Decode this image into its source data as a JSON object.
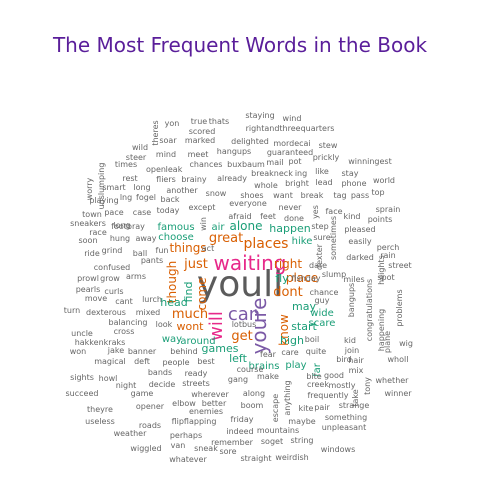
{
  "title": "The Most Frequent Words in the Book",
  "colors": {
    "title": "#5a1e9a",
    "tier1": "#5b5b5b",
    "tier2": "#7b5aa6",
    "tier3": "#e7298a",
    "tier4": "#d95f02",
    "tier5": "#1b9e77",
    "tier6": "#666666"
  },
  "words": [
    {
      "text": "youll",
      "tier": 1
    },
    {
      "text": "waiting",
      "tier": 3
    },
    {
      "text": "youre",
      "tier": 2
    },
    {
      "text": "can",
      "tier": 2
    },
    {
      "text": "will",
      "tier": 3
    },
    {
      "text": "places",
      "tier": 4
    },
    {
      "text": "great",
      "tier": 4
    },
    {
      "text": "just",
      "tier": 4
    },
    {
      "text": "dont",
      "tier": 4
    },
    {
      "text": "get",
      "tier": 4
    },
    {
      "text": "much",
      "tier": 4
    },
    {
      "text": "things",
      "tier": 4
    },
    {
      "text": "though",
      "tier": 4
    },
    {
      "text": "come",
      "tier": 4
    },
    {
      "text": "place",
      "tier": 4
    },
    {
      "text": "know",
      "tier": 4
    },
    {
      "text": "right",
      "tier": 4
    },
    {
      "text": "wont",
      "tier": 4
    },
    {
      "text": "alone",
      "tier": 5
    },
    {
      "text": "find",
      "tier": 5
    },
    {
      "text": "fly",
      "tier": 5
    },
    {
      "text": "head",
      "tier": 5
    },
    {
      "text": "start",
      "tier": 5
    },
    {
      "text": "games",
      "tier": 5
    },
    {
      "text": "happen",
      "tier": 5
    },
    {
      "text": "high",
      "tier": 5
    },
    {
      "text": "may",
      "tier": 5
    },
    {
      "text": "way",
      "tier": 5
    },
    {
      "text": "around",
      "tier": 5
    },
    {
      "text": "left",
      "tier": 5
    },
    {
      "text": "air",
      "tier": 5
    },
    {
      "text": "choose",
      "tier": 5
    },
    {
      "text": "wide",
      "tier": 5
    },
    {
      "text": "scare",
      "tier": 5
    },
    {
      "text": "famous",
      "tier": 5
    },
    {
      "text": "hike",
      "tier": 5
    },
    {
      "text": "play",
      "tier": 5
    },
    {
      "text": "far",
      "tier": 5
    },
    {
      "text": "brains",
      "tier": 5
    },
    {
      "text": "steer",
      "tier": 6
    },
    {
      "text": "mind",
      "tier": 6
    },
    {
      "text": "meet",
      "tier": 6
    },
    {
      "text": "hangups",
      "tier": 6
    },
    {
      "text": "buxbaum",
      "tier": 6
    },
    {
      "text": "mail",
      "tier": 6
    },
    {
      "text": "pot",
      "tier": 6
    },
    {
      "text": "prickly",
      "tier": 6
    },
    {
      "text": "winningest",
      "tier": 6
    },
    {
      "text": "staying",
      "tier": 6
    },
    {
      "text": "wind",
      "tier": 6
    },
    {
      "text": "true",
      "tier": 6
    },
    {
      "text": "thats",
      "tier": 6
    },
    {
      "text": "scored",
      "tier": 6
    },
    {
      "text": "rightandthreequarters",
      "tier": 6
    },
    {
      "text": "yon",
      "tier": 6
    },
    {
      "text": "soar",
      "tier": 6
    },
    {
      "text": "marked",
      "tier": 6
    },
    {
      "text": "delighted",
      "tier": 6
    },
    {
      "text": "mordecai",
      "tier": 6
    },
    {
      "text": "stew",
      "tier": 6
    },
    {
      "text": "wild",
      "tier": 6
    },
    {
      "text": "theres",
      "tier": 6
    },
    {
      "text": "guaranteed",
      "tier": 6
    },
    {
      "text": "chances",
      "tier": 6
    },
    {
      "text": "breakneck",
      "tier": 6
    },
    {
      "text": "ing",
      "tier": 6
    },
    {
      "text": "like",
      "tier": 6
    },
    {
      "text": "stay",
      "tier": 6
    },
    {
      "text": "open",
      "tier": 6
    },
    {
      "text": "leak",
      "tier": 6
    },
    {
      "text": "times",
      "tier": 6
    },
    {
      "text": "fliers",
      "tier": 6
    },
    {
      "text": "brainy",
      "tier": 6
    },
    {
      "text": "already",
      "tier": 6
    },
    {
      "text": "whole",
      "tier": 6
    },
    {
      "text": "bright",
      "tier": 6
    },
    {
      "text": "lead",
      "tier": 6
    },
    {
      "text": "phone",
      "tier": 6
    },
    {
      "text": "world",
      "tier": 6
    },
    {
      "text": "rest",
      "tier": 6
    },
    {
      "text": "another",
      "tier": 6
    },
    {
      "text": "snow",
      "tier": 6
    },
    {
      "text": "shoes",
      "tier": 6
    },
    {
      "text": "want",
      "tier": 6
    },
    {
      "text": "break",
      "tier": 6
    },
    {
      "text": "tag",
      "tier": 6
    },
    {
      "text": "pass",
      "tier": 6
    },
    {
      "text": "top",
      "tier": 6
    },
    {
      "text": "worry",
      "tier": 6
    },
    {
      "text": "unslumping",
      "tier": 6
    },
    {
      "text": "smart",
      "tier": 6
    },
    {
      "text": "long",
      "tier": 6
    },
    {
      "text": "playing",
      "tier": 6
    },
    {
      "text": "fogel",
      "tier": 6
    },
    {
      "text": "back",
      "tier": 6
    },
    {
      "text": "lng",
      "tier": 6
    },
    {
      "text": "town",
      "tier": 6
    },
    {
      "text": "pace",
      "tier": 6
    },
    {
      "text": "case",
      "tier": 6
    },
    {
      "text": "today",
      "tier": 6
    },
    {
      "text": "except",
      "tier": 6
    },
    {
      "text": "everyone",
      "tier": 6
    },
    {
      "text": "afraid",
      "tier": 6
    },
    {
      "text": "feet",
      "tier": 6
    },
    {
      "text": "never",
      "tier": 6
    },
    {
      "text": "done",
      "tier": 6
    },
    {
      "text": "step",
      "tier": 6
    },
    {
      "text": "yes",
      "tier": 6
    },
    {
      "text": "face",
      "tier": 6
    },
    {
      "text": "kind",
      "tier": 6
    },
    {
      "text": "points",
      "tier": 6
    },
    {
      "text": "sprain",
      "tier": 6
    },
    {
      "text": "sneakers",
      "tier": 6
    },
    {
      "text": "race",
      "tier": 6
    },
    {
      "text": "long",
      "tier": 6
    },
    {
      "text": "footbray",
      "tier": 6
    },
    {
      "text": "win",
      "tier": 6
    },
    {
      "text": "sometimes",
      "tier": 6
    },
    {
      "text": "sure",
      "tier": 6
    },
    {
      "text": "pleased",
      "tier": 6
    },
    {
      "text": "soon",
      "tier": 6
    },
    {
      "text": "hung",
      "tier": 6
    },
    {
      "text": "away",
      "tier": 6
    },
    {
      "text": "act",
      "tier": 6
    },
    {
      "text": "dexter",
      "tier": 6
    },
    {
      "text": "easily",
      "tier": 6
    },
    {
      "text": "perch",
      "tier": 6
    },
    {
      "text": "ride",
      "tier": 6
    },
    {
      "text": "grind",
      "tier": 6
    },
    {
      "text": "ball",
      "tier": 6
    },
    {
      "text": "fun",
      "tier": 6
    },
    {
      "text": "rain",
      "tier": 6
    },
    {
      "text": "darked",
      "tier": 6
    },
    {
      "text": "heights",
      "tier": 6
    },
    {
      "text": "street",
      "tier": 6
    },
    {
      "text": "confused",
      "tier": 6
    },
    {
      "text": "pants",
      "tier": 6
    },
    {
      "text": "dare",
      "tier": 6
    },
    {
      "text": "slump",
      "tier": 6
    },
    {
      "text": "prowl",
      "tier": 6
    },
    {
      "text": "grow",
      "tier": 6
    },
    {
      "text": "arms",
      "tier": 6
    },
    {
      "text": "fishday",
      "tier": 6
    },
    {
      "text": "chance",
      "tier": 6
    },
    {
      "text": "miles",
      "tier": 6
    },
    {
      "text": "bangups",
      "tier": 6
    },
    {
      "text": "pearls",
      "tier": 6
    },
    {
      "text": "curls",
      "tier": 6
    },
    {
      "text": "lurch",
      "tier": 6
    },
    {
      "text": "guy",
      "tier": 6
    },
    {
      "text": "congratulations",
      "tier": 6
    },
    {
      "text": "spot",
      "tier": 6
    },
    {
      "text": "move",
      "tier": 6
    },
    {
      "text": "cant",
      "tier": 6
    },
    {
      "text": "turn",
      "tier": 6
    },
    {
      "text": "dexterous",
      "tier": 6
    },
    {
      "text": "mixed",
      "tier": 6
    },
    {
      "text": "problems",
      "tier": 6
    },
    {
      "text": "balancing",
      "tier": 6
    },
    {
      "text": "look",
      "tier": 6
    },
    {
      "text": "lotbus",
      "tier": 6
    },
    {
      "text": "happening",
      "tier": 6
    },
    {
      "text": "uncle",
      "tier": 6
    },
    {
      "text": "cross",
      "tier": 6
    },
    {
      "text": "boil",
      "tier": 6
    },
    {
      "text": "kid",
      "tier": 6
    },
    {
      "text": "plane",
      "tier": 6
    },
    {
      "text": "wig",
      "tier": 6
    },
    {
      "text": "hakkenkraks",
      "tier": 6
    },
    {
      "text": "care",
      "tier": 6
    },
    {
      "text": "quite",
      "tier": 6
    },
    {
      "text": "join",
      "tier": 6
    },
    {
      "text": "won",
      "tier": 6
    },
    {
      "text": "jake",
      "tier": 6
    },
    {
      "text": "banner",
      "tier": 6
    },
    {
      "text": "behind",
      "tier": 6
    },
    {
      "text": "fear",
      "tier": 6
    },
    {
      "text": "bird",
      "tier": 6
    },
    {
      "text": "hair",
      "tier": 6
    },
    {
      "text": "wholl",
      "tier": 6
    },
    {
      "text": "magical",
      "tier": 6
    },
    {
      "text": "deft",
      "tier": 6
    },
    {
      "text": "people",
      "tier": 6
    },
    {
      "text": "best",
      "tier": 6
    },
    {
      "text": "course",
      "tier": 6
    },
    {
      "text": "mix",
      "tier": 6
    },
    {
      "text": "sights",
      "tier": 6
    },
    {
      "text": "howl",
      "tier": 6
    },
    {
      "text": "bands",
      "tier": 6
    },
    {
      "text": "ready",
      "tier": 6
    },
    {
      "text": "gang",
      "tier": 6
    },
    {
      "text": "make",
      "tier": 6
    },
    {
      "text": "bite",
      "tier": 6
    },
    {
      "text": "good",
      "tier": 6
    },
    {
      "text": "whether",
      "tier": 6
    },
    {
      "text": "night",
      "tier": 6
    },
    {
      "text": "decide",
      "tier": 6
    },
    {
      "text": "streets",
      "tier": 6
    },
    {
      "text": "creek",
      "tier": 6
    },
    {
      "text": "mostly",
      "tier": 6
    },
    {
      "text": "succeed",
      "tier": 6
    },
    {
      "text": "game",
      "tier": 6
    },
    {
      "text": "wherever",
      "tier": 6
    },
    {
      "text": "along",
      "tier": 6
    },
    {
      "text": "frequently",
      "tier": 6
    },
    {
      "text": "winner",
      "tier": 6
    },
    {
      "text": "theyre",
      "tier": 6
    },
    {
      "text": "opener",
      "tier": 6
    },
    {
      "text": "elbow",
      "tier": 6
    },
    {
      "text": "better",
      "tier": 6
    },
    {
      "text": "boom",
      "tier": 6
    },
    {
      "text": "anything",
      "tier": 6
    },
    {
      "text": "kite",
      "tier": 6
    },
    {
      "text": "pair",
      "tier": 6
    },
    {
      "text": "strange",
      "tier": 6
    },
    {
      "text": "useless",
      "tier": 6
    },
    {
      "text": "roads",
      "tier": 6
    },
    {
      "text": "enemies",
      "tier": 6
    },
    {
      "text": "flipflapping",
      "tier": 6
    },
    {
      "text": "friday",
      "tier": 6
    },
    {
      "text": "maybe",
      "tier": 6
    },
    {
      "text": "something",
      "tier": 6
    },
    {
      "text": "weather",
      "tier": 6
    },
    {
      "text": "perhaps",
      "tier": 6
    },
    {
      "text": "indeed",
      "tier": 6
    },
    {
      "text": "mountains",
      "tier": 6
    },
    {
      "text": "unpleasant",
      "tier": 6
    },
    {
      "text": "wiggled",
      "tier": 6
    },
    {
      "text": "van",
      "tier": 6
    },
    {
      "text": "sneak",
      "tier": 6
    },
    {
      "text": "remember",
      "tier": 6
    },
    {
      "text": "soget",
      "tier": 6
    },
    {
      "text": "string",
      "tier": 6
    },
    {
      "text": "windows",
      "tier": 6
    },
    {
      "text": "whatever",
      "tier": 6
    },
    {
      "text": "sore",
      "tier": 6
    },
    {
      "text": "straight",
      "tier": 6
    },
    {
      "text": "weirdish",
      "tier": 6
    },
    {
      "text": "escape",
      "tier": 6
    },
    {
      "text": "tony",
      "tier": 6
    },
    {
      "text": "take",
      "tier": 6
    }
  ]
}
